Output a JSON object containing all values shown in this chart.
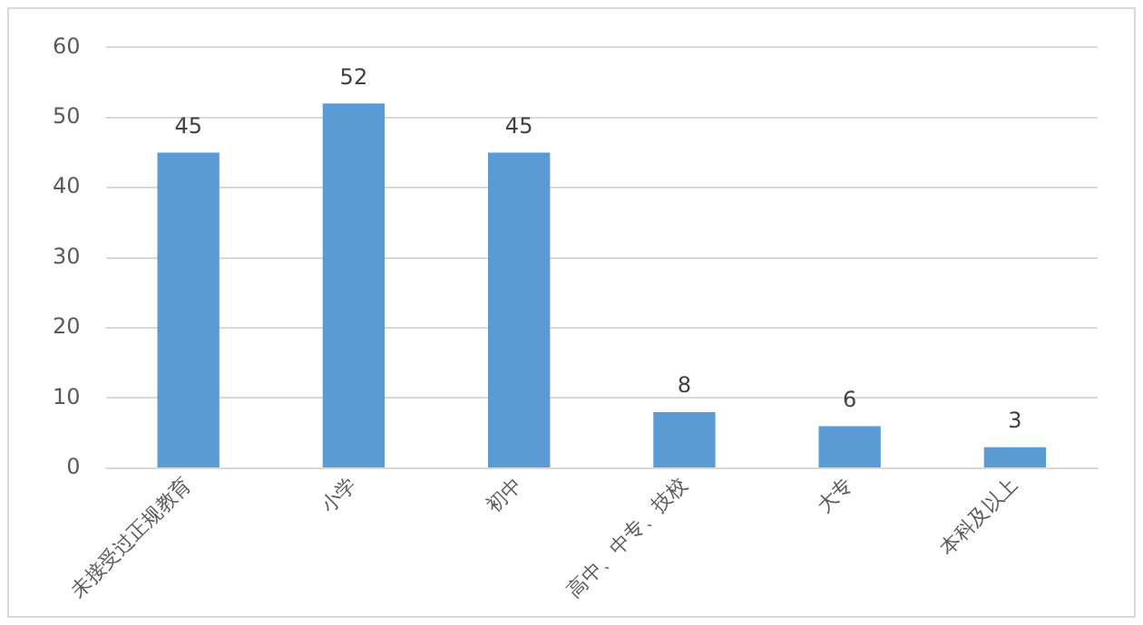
{
  "chart_data": {
    "type": "bar",
    "categories": [
      "未接受过正规教育",
      "小学",
      "初中",
      "高中、中专、技校",
      "大专",
      "本科及以上"
    ],
    "values": [
      45,
      52,
      45,
      8,
      6,
      3
    ],
    "color": "#5b9bd5",
    "ylim": [
      0,
      60
    ],
    "yticks": [
      0,
      10,
      20,
      30,
      40,
      50,
      60
    ],
    "grid": "y",
    "data_labels": true,
    "legend": false
  }
}
